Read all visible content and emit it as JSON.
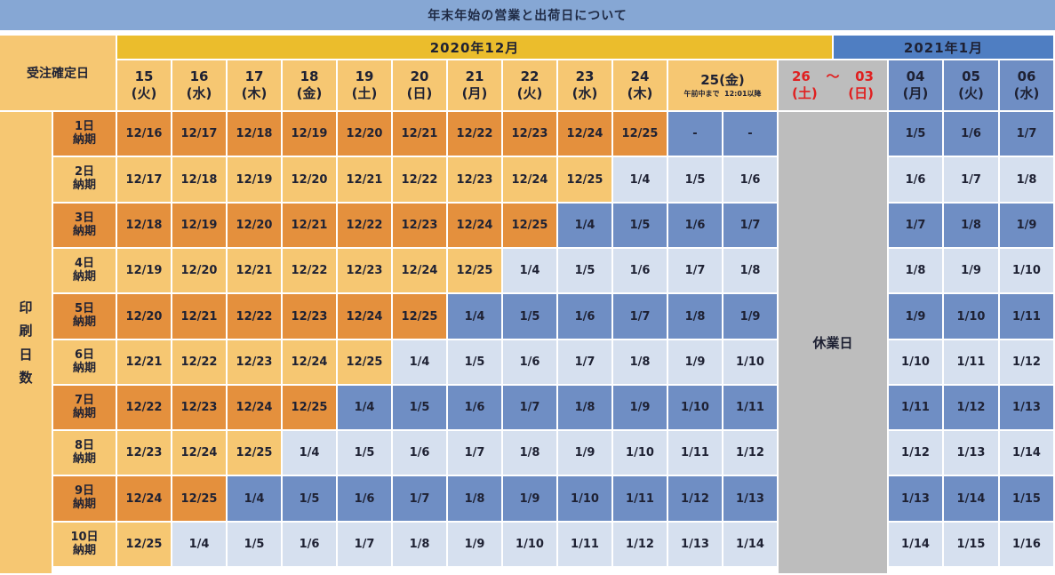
{
  "title": "年末年始の営業と出荷日について",
  "order_header": "受注確定日",
  "side_label": [
    "印",
    "刷",
    "日",
    "数"
  ],
  "month_2020": "2020年12月",
  "month_2021": "2021年1月",
  "days_2020": [
    {
      "num": "15",
      "dow": "(火)"
    },
    {
      "num": "16",
      "dow": "(水)"
    },
    {
      "num": "17",
      "dow": "(木)"
    },
    {
      "num": "18",
      "dow": "(金)"
    },
    {
      "num": "19",
      "dow": "(土)"
    },
    {
      "num": "20",
      "dow": "(日)"
    },
    {
      "num": "21",
      "dow": "(月)"
    },
    {
      "num": "22",
      "dow": "(火)"
    },
    {
      "num": "23",
      "dow": "(水)"
    },
    {
      "num": "24",
      "dow": "(木)"
    }
  ],
  "day_25": {
    "num": "25(金)",
    "sub_am": "午前中まで",
    "sub_pm": "12:01以降"
  },
  "holiday_header": {
    "start": "26",
    "tilde": "〜",
    "end": "03",
    "dow_start": "(土)",
    "dow_end": "(日)"
  },
  "holiday_text": "休業日",
  "days_2021": [
    {
      "num": "04",
      "dow": "(月)"
    },
    {
      "num": "05",
      "dow": "(火)"
    },
    {
      "num": "06",
      "dow": "(水)"
    }
  ],
  "rows": [
    {
      "l1": "1日",
      "l2": "納期",
      "values": [
        "12/16",
        "12/17",
        "12/18",
        "12/19",
        "12/20",
        "12/21",
        "12/22",
        "12/23",
        "12/24",
        "12/25",
        "-",
        "-"
      ],
      "jan": [
        "1/5",
        "1/6",
        "1/7"
      ]
    },
    {
      "l1": "2日",
      "l2": "納期",
      "values": [
        "12/17",
        "12/18",
        "12/19",
        "12/20",
        "12/21",
        "12/22",
        "12/23",
        "12/24",
        "12/25",
        "1/4",
        "1/5",
        "1/6"
      ],
      "jan": [
        "1/6",
        "1/7",
        "1/8"
      ]
    },
    {
      "l1": "3日",
      "l2": "納期",
      "values": [
        "12/18",
        "12/19",
        "12/20",
        "12/21",
        "12/22",
        "12/23",
        "12/24",
        "12/25",
        "1/4",
        "1/5",
        "1/6",
        "1/7"
      ],
      "jan": [
        "1/7",
        "1/8",
        "1/9"
      ]
    },
    {
      "l1": "4日",
      "l2": "納期",
      "values": [
        "12/19",
        "12/20",
        "12/21",
        "12/22",
        "12/23",
        "12/24",
        "12/25",
        "1/4",
        "1/5",
        "1/6",
        "1/7",
        "1/8"
      ],
      "jan": [
        "1/8",
        "1/9",
        "1/10"
      ]
    },
    {
      "l1": "5日",
      "l2": "納期",
      "values": [
        "12/20",
        "12/21",
        "12/22",
        "12/23",
        "12/24",
        "12/25",
        "1/4",
        "1/5",
        "1/6",
        "1/7",
        "1/8",
        "1/9"
      ],
      "jan": [
        "1/9",
        "1/10",
        "1/11"
      ]
    },
    {
      "l1": "6日",
      "l2": "納期",
      "values": [
        "12/21",
        "12/22",
        "12/23",
        "12/24",
        "12/25",
        "1/4",
        "1/5",
        "1/6",
        "1/7",
        "1/8",
        "1/9",
        "1/10"
      ],
      "jan": [
        "1/10",
        "1/11",
        "1/12"
      ]
    },
    {
      "l1": "7日",
      "l2": "納期",
      "values": [
        "12/22",
        "12/23",
        "12/24",
        "12/25",
        "1/4",
        "1/5",
        "1/6",
        "1/7",
        "1/8",
        "1/9",
        "1/10",
        "1/11"
      ],
      "jan": [
        "1/11",
        "1/12",
        "1/13"
      ]
    },
    {
      "l1": "8日",
      "l2": "納期",
      "values": [
        "12/23",
        "12/24",
        "12/25",
        "1/4",
        "1/5",
        "1/6",
        "1/7",
        "1/8",
        "1/9",
        "1/10",
        "1/11",
        "1/12"
      ],
      "jan": [
        "1/12",
        "1/13",
        "1/14"
      ]
    },
    {
      "l1": "9日",
      "l2": "納期",
      "values": [
        "12/24",
        "12/25",
        "1/4",
        "1/5",
        "1/6",
        "1/7",
        "1/8",
        "1/9",
        "1/10",
        "1/11",
        "1/12",
        "1/13"
      ],
      "jan": [
        "1/13",
        "1/14",
        "1/15"
      ]
    },
    {
      "l1": "10日",
      "l2": "納期",
      "values": [
        "12/25",
        "1/4",
        "1/5",
        "1/6",
        "1/7",
        "1/8",
        "1/9",
        "1/10",
        "1/11",
        "1/12",
        "1/13",
        "1/14"
      ],
      "jan": [
        "1/14",
        "1/15",
        "1/16"
      ]
    }
  ],
  "colors": {
    "title_bg": "#86a7d4",
    "header_2020": "#ebbd2c",
    "header_2021": "#4f7ec2",
    "dec_dark": "#e4903d",
    "dec_light": "#f6c772",
    "jan_dark": "#6f8ec4",
    "jan_light": "#d6e0ef",
    "holiday": "#bdbdbd",
    "holiday_red": "#e02020"
  }
}
